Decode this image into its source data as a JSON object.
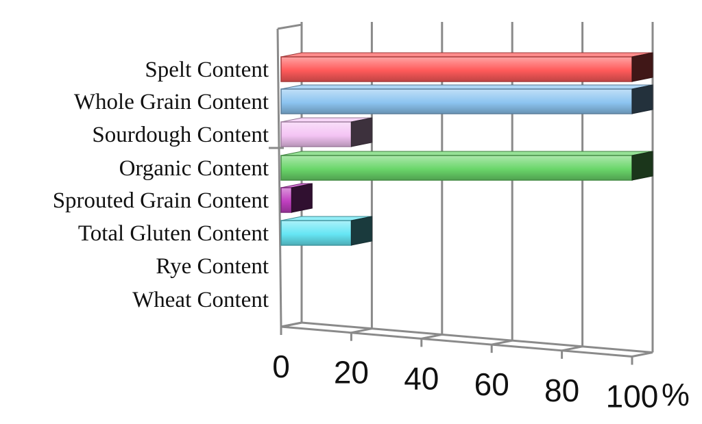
{
  "chart_data": {
    "type": "bar",
    "orientation": "horizontal",
    "style": "3d",
    "categories": [
      "Spelt Content",
      "Whole Grain Content",
      "Sourdough Content",
      "Organic Content",
      "Sprouted Grain Content",
      "Total Gluten Content",
      "Rye Content",
      "Wheat Content"
    ],
    "values": [
      100,
      100,
      20,
      100,
      3,
      20,
      0,
      0
    ],
    "colors": [
      "#ff5a5a",
      "#8cc4f0",
      "#f4c4f4",
      "#6ad66a",
      "#c040c0",
      "#66e6f4",
      "#cccccc",
      "#cccccc"
    ],
    "xlim": [
      0,
      100
    ],
    "x_ticks": [
      "0",
      "20",
      "40",
      "60",
      "80",
      "100"
    ],
    "x_unit": "%",
    "grid": true,
    "legend": "none",
    "title": "",
    "xlabel": "",
    "ylabel": ""
  }
}
